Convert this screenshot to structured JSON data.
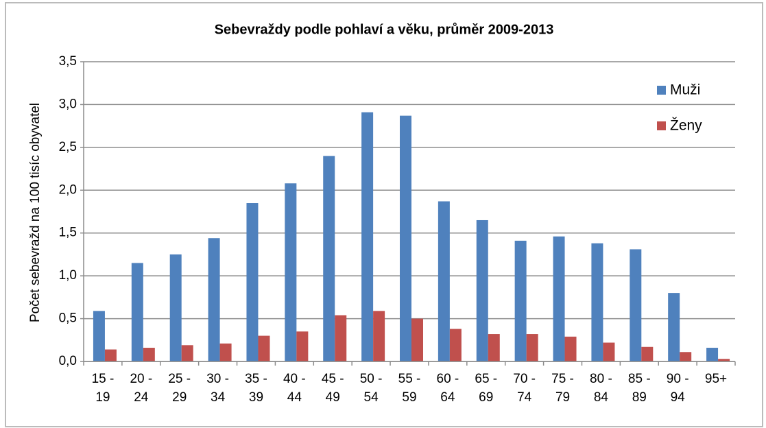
{
  "chart_data": {
    "type": "bar",
    "title": "Sebevraždy podle pohlaví a věku, průměr 2009-2013",
    "ylabel": "Počet sebevražd na 100 tisíc obyvatel",
    "categories": [
      "15 - 19",
      "20 - 24",
      "25 - 29",
      "30 - 34",
      "35 - 39",
      "40 - 44",
      "45 - 49",
      "50 - 54",
      "55 - 59",
      "60 - 64",
      "65 - 69",
      "70 - 74",
      "75 - 79",
      "80 - 84",
      "85 - 89",
      "90 - 94",
      "95+"
    ],
    "series": [
      {
        "name": "Muži",
        "color": "#4f81bd",
        "values": [
          0.59,
          1.15,
          1.25,
          1.44,
          1.85,
          2.08,
          2.4,
          2.91,
          2.87,
          1.87,
          1.65,
          1.41,
          1.46,
          1.38,
          1.31,
          0.8,
          0.16
        ]
      },
      {
        "name": "Ženy",
        "color": "#c0504d",
        "values": [
          0.14,
          0.16,
          0.19,
          0.21,
          0.3,
          0.35,
          0.54,
          0.59,
          0.5,
          0.38,
          0.32,
          0.32,
          0.29,
          0.22,
          0.17,
          0.11,
          0.03
        ]
      }
    ],
    "ylim": [
      0,
      3.5
    ],
    "yticks": [
      {
        "value": 0,
        "label": "0,0"
      },
      {
        "value": 0.5,
        "label": "0,5"
      },
      {
        "value": 1,
        "label": "1,0"
      },
      {
        "value": 1.5,
        "label": "1,5"
      },
      {
        "value": 2,
        "label": "2,0"
      },
      {
        "value": 2.5,
        "label": "2,5"
      },
      {
        "value": 3,
        "label": "3,0"
      },
      {
        "value": 3.5,
        "label": "3,5"
      }
    ],
    "grid": true,
    "legend": "top-right"
  }
}
